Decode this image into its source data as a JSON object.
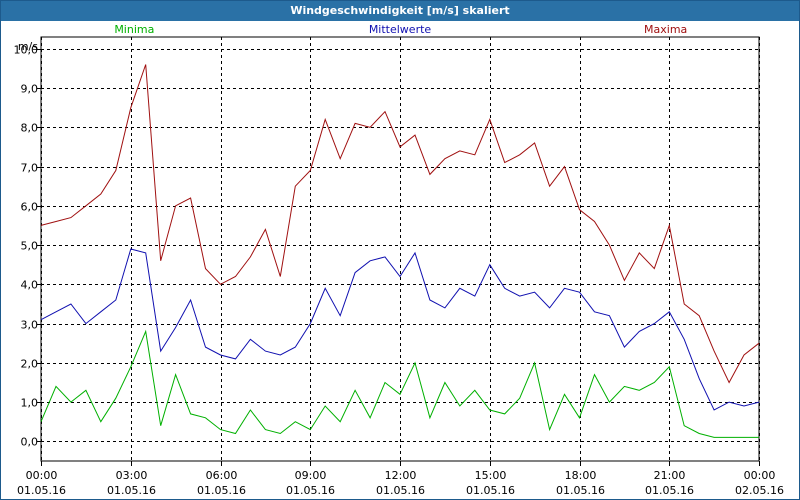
{
  "window": {
    "title": "Windgeschwindigkeit [m/s] skaliert"
  },
  "chart_data": {
    "type": "line",
    "title": "Windgeschwindigkeit [m/s] skaliert",
    "ylabel": "m/s",
    "xlabel": "",
    "ylim": [
      -0.5,
      10.3
    ],
    "xlim": [
      0,
      24
    ],
    "grid": true,
    "legend_position": "top",
    "y_ticks": [
      0,
      1,
      2,
      3,
      4,
      5,
      6,
      7,
      8,
      9,
      10
    ],
    "y_tick_labels": [
      "0,0",
      "1,0",
      "2,0",
      "3,0",
      "4,0",
      "5,0",
      "6,0",
      "7,0",
      "8,0",
      "9,0",
      "10,0"
    ],
    "x_ticks": [
      0,
      3,
      6,
      9,
      12,
      15,
      18,
      21,
      24
    ],
    "x_tick_labels": [
      {
        "time": "00:00",
        "date": "01.05.16"
      },
      {
        "time": "03:00",
        "date": "01.05.16"
      },
      {
        "time": "06:00",
        "date": "01.05.16"
      },
      {
        "time": "09:00",
        "date": "01.05.16"
      },
      {
        "time": "12:00",
        "date": "01.05.16"
      },
      {
        "time": "15:00",
        "date": "01.05.16"
      },
      {
        "time": "18:00",
        "date": "01.05.16"
      },
      {
        "time": "21:00",
        "date": "01.05.16"
      },
      {
        "time": "00:00",
        "date": "02.05.16"
      }
    ],
    "series": [
      {
        "name": "Minima",
        "color": "#00b000",
        "x": [
          0,
          0.5,
          1,
          1.5,
          2,
          2.5,
          3,
          3.5,
          4,
          4.5,
          5,
          5.5,
          6,
          6.5,
          7,
          7.5,
          8,
          8.5,
          9,
          9.5,
          10,
          10.5,
          11,
          11.5,
          12,
          12.5,
          13,
          13.5,
          14,
          14.5,
          15,
          15.5,
          16,
          16.5,
          17,
          17.5,
          18,
          18.5,
          19,
          19.5,
          20,
          20.5,
          21,
          21.5,
          22,
          22.5,
          23,
          23.5,
          24
        ],
        "values": [
          0.5,
          1.4,
          1.0,
          1.3,
          0.5,
          1.1,
          1.9,
          2.8,
          0.4,
          1.7,
          0.7,
          0.6,
          0.3,
          0.2,
          0.8,
          0.3,
          0.2,
          0.5,
          0.3,
          0.9,
          0.5,
          1.3,
          0.6,
          1.5,
          1.2,
          2.0,
          0.6,
          1.5,
          0.9,
          1.3,
          0.8,
          0.7,
          1.1,
          2.0,
          0.3,
          1.2,
          0.6,
          1.7,
          1.0,
          1.4,
          1.3,
          1.5,
          1.9,
          0.4,
          0.2,
          0.1,
          0.1,
          0.1,
          0.1
        ]
      },
      {
        "name": "Mittelwerte",
        "color": "#1010b0",
        "x": [
          0,
          0.5,
          1,
          1.5,
          2,
          2.5,
          3,
          3.5,
          4,
          4.5,
          5,
          5.5,
          6,
          6.5,
          7,
          7.5,
          8,
          8.5,
          9,
          9.5,
          10,
          10.5,
          11,
          11.5,
          12,
          12.5,
          13,
          13.5,
          14,
          14.5,
          15,
          15.5,
          16,
          16.5,
          17,
          17.5,
          18,
          18.5,
          19,
          19.5,
          20,
          20.5,
          21,
          21.5,
          22,
          22.5,
          23,
          23.5,
          24
        ],
        "values": [
          3.1,
          3.3,
          3.5,
          3.0,
          3.3,
          3.6,
          4.9,
          4.8,
          2.3,
          2.9,
          3.6,
          2.4,
          2.2,
          2.1,
          2.6,
          2.3,
          2.2,
          2.4,
          3.0,
          3.9,
          3.2,
          4.3,
          4.6,
          4.7,
          4.2,
          4.8,
          3.6,
          3.4,
          3.9,
          3.7,
          4.5,
          3.9,
          3.7,
          3.8,
          3.4,
          3.9,
          3.8,
          3.3,
          3.2,
          2.4,
          2.8,
          3.0,
          3.3,
          2.6,
          1.6,
          0.8,
          1.0,
          0.9,
          1.0
        ]
      },
      {
        "name": "Maxima",
        "color": "#a01010",
        "x": [
          0,
          0.5,
          1,
          1.5,
          2,
          2.5,
          3,
          3.5,
          4,
          4.5,
          5,
          5.5,
          6,
          6.5,
          7,
          7.5,
          8,
          8.5,
          9,
          9.5,
          10,
          10.5,
          11,
          11.5,
          12,
          12.5,
          13,
          13.5,
          14,
          14.5,
          15,
          15.5,
          16,
          16.5,
          17,
          17.5,
          18,
          18.5,
          19,
          19.5,
          20,
          20.5,
          21,
          21.5,
          22,
          22.5,
          23,
          23.5,
          24
        ],
        "values": [
          5.5,
          5.6,
          5.7,
          6.0,
          6.3,
          6.9,
          8.5,
          9.6,
          4.6,
          6.0,
          6.2,
          4.4,
          4.0,
          4.2,
          4.7,
          5.4,
          4.2,
          6.5,
          6.9,
          8.2,
          7.2,
          8.1,
          8.0,
          8.4,
          7.5,
          7.8,
          6.8,
          7.2,
          7.4,
          7.3,
          8.2,
          7.1,
          7.3,
          7.6,
          6.5,
          7.0,
          5.9,
          5.6,
          5.0,
          4.1,
          4.8,
          4.4,
          5.5,
          3.5,
          3.2,
          2.3,
          1.5,
          2.2,
          2.5
        ]
      }
    ]
  }
}
